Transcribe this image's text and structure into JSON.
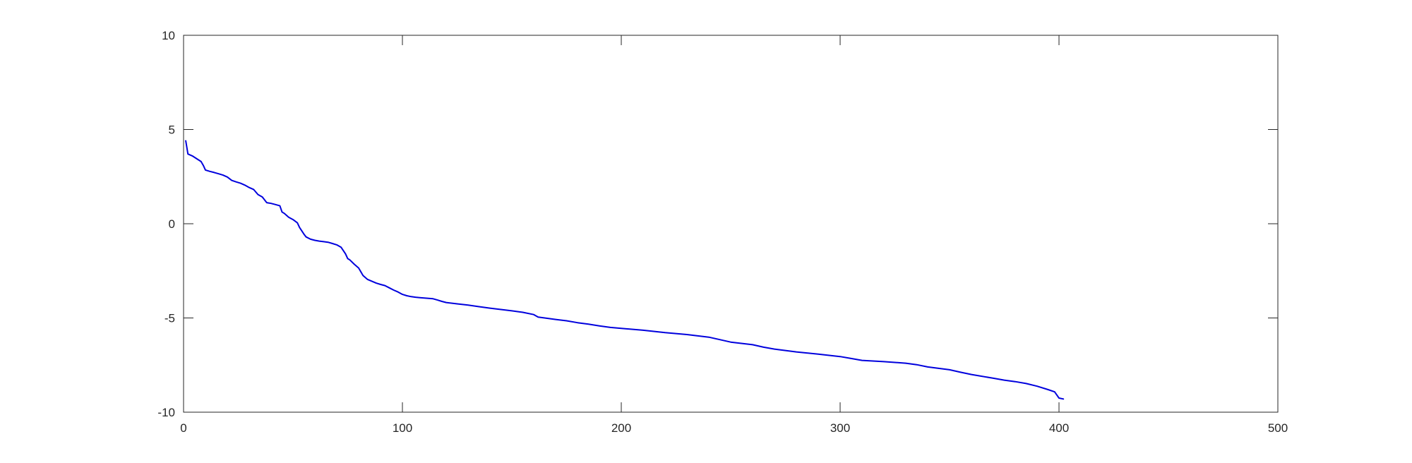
{
  "chart_data": {
    "type": "line",
    "title": "",
    "xlabel": "",
    "ylabel": "",
    "xlim": [
      0,
      500
    ],
    "ylim": [
      -10,
      10
    ],
    "xticks": [
      0,
      100,
      200,
      300,
      400,
      500
    ],
    "yticks": [
      -10,
      -5,
      0,
      5,
      10
    ],
    "xtick_labels": [
      "0",
      "100",
      "200",
      "300",
      "400",
      "500"
    ],
    "ytick_labels": [
      "-10",
      "-5",
      "0",
      "5",
      "10"
    ],
    "grid": false,
    "legend": "none",
    "series": [
      {
        "color": "#0000dd",
        "x": [
          1,
          2,
          4,
          6,
          8,
          9,
          10,
          12,
          14,
          16,
          18,
          20,
          22,
          24,
          26,
          28,
          30,
          32,
          34,
          36,
          38,
          40,
          42,
          44,
          45,
          46,
          48,
          50,
          52,
          53,
          55,
          56,
          58,
          60,
          62,
          64,
          66,
          68,
          70,
          72,
          74,
          75,
          76,
          78,
          80,
          82,
          84,
          86,
          88,
          90,
          92,
          94,
          96,
          98,
          100,
          102,
          104,
          106,
          108,
          110,
          112,
          114,
          116,
          118,
          120,
          125,
          130,
          135,
          140,
          145,
          150,
          155,
          160,
          162,
          165,
          170,
          175,
          180,
          185,
          190,
          195,
          200,
          210,
          220,
          230,
          240,
          245,
          250,
          260,
          265,
          270,
          280,
          290,
          300,
          305,
          310,
          320,
          330,
          335,
          340,
          350,
          355,
          360,
          370,
          375,
          380,
          385,
          390,
          395,
          398,
          400,
          402
        ],
        "y": [
          4.4,
          3.7,
          3.6,
          3.45,
          3.3,
          3.1,
          2.85,
          2.78,
          2.72,
          2.65,
          2.58,
          2.48,
          2.3,
          2.22,
          2.15,
          2.05,
          1.92,
          1.82,
          1.55,
          1.42,
          1.12,
          1.08,
          1.02,
          0.95,
          0.62,
          0.55,
          0.35,
          0.22,
          0.05,
          -0.2,
          -0.55,
          -0.7,
          -0.82,
          -0.88,
          -0.92,
          -0.95,
          -0.98,
          -1.05,
          -1.12,
          -1.25,
          -1.6,
          -1.85,
          -1.92,
          -2.15,
          -2.35,
          -2.75,
          -2.95,
          -3.05,
          -3.15,
          -3.22,
          -3.28,
          -3.4,
          -3.52,
          -3.62,
          -3.75,
          -3.82,
          -3.87,
          -3.9,
          -3.92,
          -3.94,
          -3.96,
          -3.98,
          -4.05,
          -4.12,
          -4.18,
          -4.25,
          -4.32,
          -4.4,
          -4.48,
          -4.55,
          -4.62,
          -4.7,
          -4.82,
          -4.95,
          -5.0,
          -5.08,
          -5.15,
          -5.25,
          -5.33,
          -5.42,
          -5.5,
          -5.55,
          -5.65,
          -5.78,
          -5.88,
          -6.02,
          -6.15,
          -6.28,
          -6.42,
          -6.55,
          -6.65,
          -6.8,
          -6.92,
          -7.05,
          -7.15,
          -7.25,
          -7.32,
          -7.4,
          -7.48,
          -7.6,
          -7.75,
          -7.88,
          -8.0,
          -8.2,
          -8.3,
          -8.38,
          -8.48,
          -8.62,
          -8.8,
          -8.92,
          -9.25,
          -9.3
        ]
      }
    ]
  }
}
